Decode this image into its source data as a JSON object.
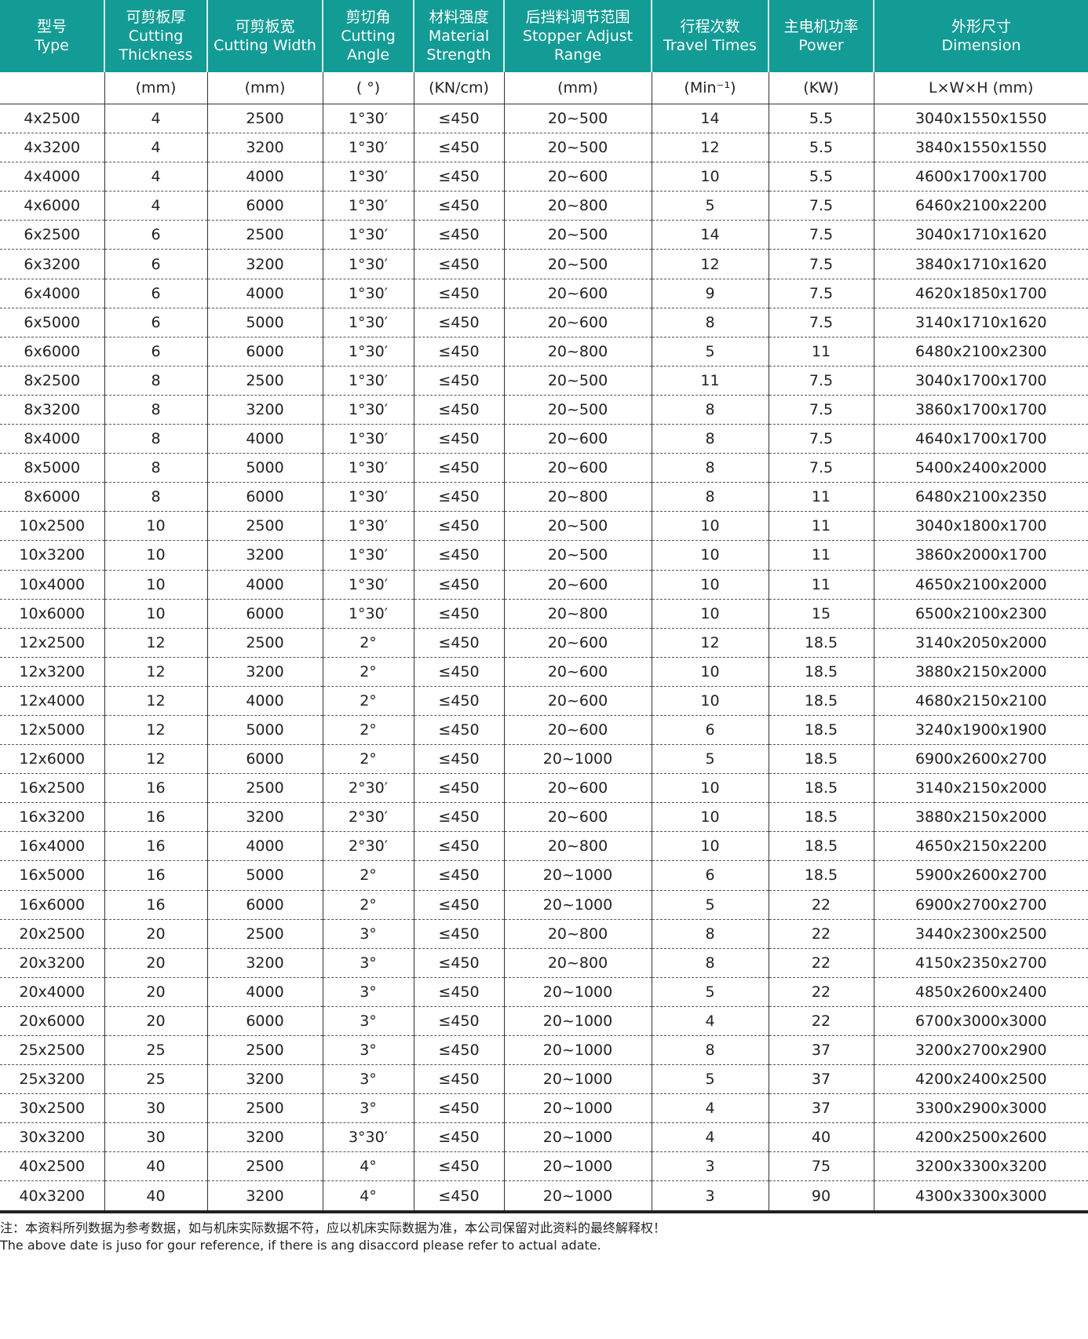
{
  "headers": [
    {
      "cn": "型号",
      "en": "Type"
    },
    {
      "cn": "可剪板厚",
      "en": "Cutting Thickness"
    },
    {
      "cn": "可剪板宽",
      "en": "Cutting Width"
    },
    {
      "cn": "剪切角",
      "en": "Cutting Angle"
    },
    {
      "cn": "材料强度",
      "en": "Material Strength"
    },
    {
      "cn": "后挡料调节范围",
      "en": "Stopper Adjust Range"
    },
    {
      "cn": "行程次数",
      "en": "Travel Times"
    },
    {
      "cn": "主电机功率",
      "en": "Power"
    },
    {
      "cn": "外形尺寸",
      "en": "Dimension"
    }
  ],
  "units": [
    "",
    "(mm)",
    "(mm)",
    "( °)",
    "(KN/cm)",
    "(mm)",
    "(Min⁻¹)",
    "(KW)",
    "L×W×H   (mm)"
  ],
  "rows": [
    [
      "4x2500",
      "4",
      "2500",
      "1°30′",
      "≤450",
      "20~500",
      "14",
      "5.5",
      "3040x1550x1550"
    ],
    [
      "4x3200",
      "4",
      "3200",
      "1°30′",
      "≤450",
      "20~500",
      "12",
      "5.5",
      "3840x1550x1550"
    ],
    [
      "4x4000",
      "4",
      "4000",
      "1°30′",
      "≤450",
      "20~600",
      "10",
      "5.5",
      "4600x1700x1700"
    ],
    [
      "4x6000",
      "4",
      "6000",
      "1°30′",
      "≤450",
      "20~800",
      "5",
      "7.5",
      "6460x2100x2200"
    ],
    [
      "6x2500",
      "6",
      "2500",
      "1°30′",
      "≤450",
      "20~500",
      "14",
      "7.5",
      "3040x1710x1620"
    ],
    [
      "6x3200",
      "6",
      "3200",
      "1°30′",
      "≤450",
      "20~500",
      "12",
      "7.5",
      "3840x1710x1620"
    ],
    [
      "6x4000",
      "6",
      "4000",
      "1°30′",
      "≤450",
      "20~600",
      "9",
      "7.5",
      "4620x1850x1700"
    ],
    [
      "6x5000",
      "6",
      "5000",
      "1°30′",
      "≤450",
      "20~600",
      "8",
      "7.5",
      "3140x1710x1620"
    ],
    [
      "6x6000",
      "6",
      "6000",
      "1°30′",
      "≤450",
      "20~800",
      "5",
      "11",
      "6480x2100x2300"
    ],
    [
      "8x2500",
      "8",
      "2500",
      "1°30′",
      "≤450",
      "20~500",
      "11",
      "7.5",
      "3040x1700x1700"
    ],
    [
      "8x3200",
      "8",
      "3200",
      "1°30′",
      "≤450",
      "20~500",
      "8",
      "7.5",
      "3860x1700x1700"
    ],
    [
      "8x4000",
      "8",
      "4000",
      "1°30′",
      "≤450",
      "20~600",
      "8",
      "7.5",
      "4640x1700x1700"
    ],
    [
      "8x5000",
      "8",
      "5000",
      "1°30′",
      "≤450",
      "20~600",
      "8",
      "7.5",
      "5400x2400x2000"
    ],
    [
      "8x6000",
      "8",
      "6000",
      "1°30′",
      "≤450",
      "20~800",
      "8",
      "11",
      "6480x2100x2350"
    ],
    [
      "10x2500",
      "10",
      "2500",
      "1°30′",
      "≤450",
      "20~500",
      "10",
      "11",
      "3040x1800x1700"
    ],
    [
      "10x3200",
      "10",
      "3200",
      "1°30′",
      "≤450",
      "20~500",
      "10",
      "11",
      "3860x2000x1700"
    ],
    [
      "10x4000",
      "10",
      "4000",
      "1°30′",
      "≤450",
      "20~600",
      "10",
      "11",
      "4650x2100x2000"
    ],
    [
      "10x6000",
      "10",
      "6000",
      "1°30′",
      "≤450",
      "20~800",
      "10",
      "15",
      "6500x2100x2300"
    ],
    [
      "12x2500",
      "12",
      "2500",
      "2°",
      "≤450",
      "20~600",
      "12",
      "18.5",
      "3140x2050x2000"
    ],
    [
      "12x3200",
      "12",
      "3200",
      "2°",
      "≤450",
      "20~600",
      "10",
      "18.5",
      "3880x2150x2000"
    ],
    [
      "12x4000",
      "12",
      "4000",
      "2°",
      "≤450",
      "20~600",
      "10",
      "18.5",
      "4680x2150x2100"
    ],
    [
      "12x5000",
      "12",
      "5000",
      "2°",
      "≤450",
      "20~600",
      "6",
      "18.5",
      "3240x1900x1900"
    ],
    [
      "12x6000",
      "12",
      "6000",
      "2°",
      "≤450",
      "20~1000",
      "5",
      "18.5",
      "6900x2600x2700"
    ],
    [
      "16x2500",
      "16",
      "2500",
      "2°30′",
      "≤450",
      "20~600",
      "10",
      "18.5",
      "3140x2150x2000"
    ],
    [
      "16x3200",
      "16",
      "3200",
      "2°30′",
      "≤450",
      "20~600",
      "10",
      "18.5",
      "3880x2150x2000"
    ],
    [
      "16x4000",
      "16",
      "4000",
      "2°30′",
      "≤450",
      "20~800",
      "10",
      "18.5",
      "4650x2150x2200"
    ],
    [
      "16x5000",
      "16",
      "5000",
      "2°",
      "≤450",
      "20~1000",
      "6",
      "18.5",
      "5900x2600x2700"
    ],
    [
      "16x6000",
      "16",
      "6000",
      "2°",
      "≤450",
      "20~1000",
      "5",
      "22",
      "6900x2700x2700"
    ],
    [
      "20x2500",
      "20",
      "2500",
      "3°",
      "≤450",
      "20~800",
      "8",
      "22",
      "3440x2300x2500"
    ],
    [
      "20x3200",
      "20",
      "3200",
      "3°",
      "≤450",
      "20~800",
      "8",
      "22",
      "4150x2350x2700"
    ],
    [
      "20x4000",
      "20",
      "4000",
      "3°",
      "≤450",
      "20~1000",
      "5",
      "22",
      "4850x2600x2400"
    ],
    [
      "20x6000",
      "20",
      "6000",
      "3°",
      "≤450",
      "20~1000",
      "4",
      "22",
      "6700x3000x3000"
    ],
    [
      "25x2500",
      "25",
      "2500",
      "3°",
      "≤450",
      "20~1000",
      "8",
      "37",
      "3200x2700x2900"
    ],
    [
      "25x3200",
      "25",
      "3200",
      "3°",
      "≤450",
      "20~1000",
      "5",
      "37",
      "4200x2400x2500"
    ],
    [
      "30x2500",
      "30",
      "2500",
      "3°",
      "≤450",
      "20~1000",
      "4",
      "37",
      "3300x2900x3000"
    ],
    [
      "30x3200",
      "30",
      "3200",
      "3°30′",
      "≤450",
      "20~1000",
      "4",
      "40",
      "4200x2500x2600"
    ],
    [
      "40x2500",
      "40",
      "2500",
      "4°",
      "≤450",
      "20~1000",
      "3",
      "75",
      "3200x3300x3200"
    ],
    [
      "40x3200",
      "40",
      "3200",
      "4°",
      "≤450",
      "20~1000",
      "3",
      "90",
      "4300x3300x3000"
    ]
  ],
  "footer": {
    "cn": "注：本资料所列数据为参考数据，如与机床实际数据不符，应以机床实际数据为准，本公司保留对此资料的最终解释权！",
    "en": "The above date is juso for gour reference, if there is ang disaccord please refer to actual adate."
  },
  "colors": {
    "header_bg": "#129c95"
  }
}
